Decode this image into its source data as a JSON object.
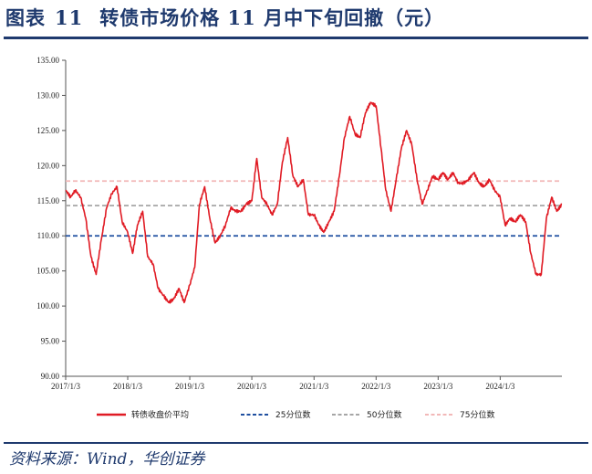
{
  "header": {
    "figure_label": "图表",
    "figure_number": "11",
    "title": "转债市场价格 11 月中下旬回撤（元）"
  },
  "source": "资料来源：Wind，华创证券",
  "colors": {
    "price": "#e01b24",
    "p25": "#1f4fa0",
    "p50": "#a6a6a6",
    "p75": "#f2b8b8",
    "title": "#1f3a6e"
  },
  "chart_data": {
    "type": "line",
    "title": "",
    "xlabel": "",
    "ylabel": "",
    "ylim": [
      90,
      135
    ],
    "yticks": [
      "90.00",
      "95.00",
      "100.00",
      "105.00",
      "110.00",
      "115.00",
      "120.00",
      "125.00",
      "130.00",
      "135.00"
    ],
    "x_range": [
      "2017-01-03",
      "2024-12-31"
    ],
    "xticks": [
      "2017/1/3",
      "2018/1/3",
      "2019/1/3",
      "2020/1/3",
      "2021/1/3",
      "2022/1/3",
      "2023/1/3",
      "2024/1/3"
    ],
    "legend": {
      "placement": "bottom"
    },
    "series": [
      {
        "name": "转债收盘价平均",
        "style": "solid",
        "points": [
          [
            "2017-01-03",
            116.5
          ],
          [
            "2017-02-01",
            115.5
          ],
          [
            "2017-03-01",
            116.5
          ],
          [
            "2017-04-01",
            115.5
          ],
          [
            "2017-05-01",
            112.5
          ],
          [
            "2017-06-01",
            107.0
          ],
          [
            "2017-07-01",
            104.5
          ],
          [
            "2017-08-01",
            109.5
          ],
          [
            "2017-09-01",
            114.0
          ],
          [
            "2017-10-01",
            116.0
          ],
          [
            "2017-11-01",
            117.0
          ],
          [
            "2017-12-01",
            112.0
          ],
          [
            "2018-01-03",
            110.5
          ],
          [
            "2018-02-01",
            107.5
          ],
          [
            "2018-03-01",
            111.5
          ],
          [
            "2018-04-01",
            113.5
          ],
          [
            "2018-05-01",
            107.0
          ],
          [
            "2018-06-01",
            106.0
          ],
          [
            "2018-07-01",
            102.5
          ],
          [
            "2018-08-01",
            101.5
          ],
          [
            "2018-09-01",
            100.5
          ],
          [
            "2018-10-01",
            101.0
          ],
          [
            "2018-11-01",
            102.5
          ],
          [
            "2018-12-01",
            100.5
          ],
          [
            "2019-01-03",
            103.0
          ],
          [
            "2019-02-01",
            105.5
          ],
          [
            "2019-03-01",
            114.5
          ],
          [
            "2019-04-01",
            117.0
          ],
          [
            "2019-05-01",
            112.5
          ],
          [
            "2019-06-01",
            109.0
          ],
          [
            "2019-07-01",
            110.0
          ],
          [
            "2019-08-01",
            111.5
          ],
          [
            "2019-09-01",
            114.0
          ],
          [
            "2019-10-01",
            113.5
          ],
          [
            "2019-11-01",
            113.5
          ],
          [
            "2019-12-01",
            114.5
          ],
          [
            "2020-01-03",
            115.0
          ],
          [
            "2020-02-01",
            121.0
          ],
          [
            "2020-03-01",
            115.5
          ],
          [
            "2020-04-01",
            114.5
          ],
          [
            "2020-05-01",
            113.0
          ],
          [
            "2020-06-01",
            114.5
          ],
          [
            "2020-07-01",
            120.5
          ],
          [
            "2020-08-01",
            124.0
          ],
          [
            "2020-09-01",
            118.5
          ],
          [
            "2020-10-01",
            117.0
          ],
          [
            "2020-11-01",
            118.0
          ],
          [
            "2020-12-01",
            113.0
          ],
          [
            "2021-01-03",
            113.0
          ],
          [
            "2021-02-01",
            111.5
          ],
          [
            "2021-03-01",
            110.5
          ],
          [
            "2021-04-01",
            112.0
          ],
          [
            "2021-05-01",
            113.5
          ],
          [
            "2021-06-01",
            118.5
          ],
          [
            "2021-07-01",
            124.0
          ],
          [
            "2021-08-01",
            127.0
          ],
          [
            "2021-09-01",
            124.5
          ],
          [
            "2021-10-01",
            124.0
          ],
          [
            "2021-11-01",
            127.5
          ],
          [
            "2021-12-01",
            129.0
          ],
          [
            "2022-01-03",
            128.5
          ],
          [
            "2022-02-01",
            122.5
          ],
          [
            "2022-03-01",
            116.5
          ],
          [
            "2022-04-01",
            113.5
          ],
          [
            "2022-05-01",
            118.0
          ],
          [
            "2022-06-01",
            122.5
          ],
          [
            "2022-07-01",
            125.0
          ],
          [
            "2022-08-01",
            123.0
          ],
          [
            "2022-09-01",
            118.0
          ],
          [
            "2022-10-01",
            114.5
          ],
          [
            "2022-11-01",
            116.5
          ],
          [
            "2022-12-01",
            118.5
          ],
          [
            "2023-01-03",
            118.0
          ],
          [
            "2023-02-01",
            119.0
          ],
          [
            "2023-03-01",
            118.0
          ],
          [
            "2023-04-01",
            119.0
          ],
          [
            "2023-05-01",
            117.5
          ],
          [
            "2023-06-01",
            117.5
          ],
          [
            "2023-07-01",
            118.0
          ],
          [
            "2023-08-01",
            119.0
          ],
          [
            "2023-09-01",
            117.5
          ],
          [
            "2023-10-01",
            117.0
          ],
          [
            "2023-11-01",
            118.0
          ],
          [
            "2023-12-01",
            116.5
          ],
          [
            "2024-01-03",
            115.5
          ],
          [
            "2024-02-01",
            111.5
          ],
          [
            "2024-03-01",
            112.5
          ],
          [
            "2024-04-01",
            112.0
          ],
          [
            "2024-05-01",
            113.0
          ],
          [
            "2024-06-01",
            112.0
          ],
          [
            "2024-07-01",
            107.5
          ],
          [
            "2024-08-01",
            104.5
          ],
          [
            "2024-09-01",
            104.5
          ],
          [
            "2024-10-01",
            112.5
          ],
          [
            "2024-11-01",
            115.5
          ],
          [
            "2024-12-01",
            113.5
          ],
          [
            "2024-12-31",
            114.5
          ]
        ]
      },
      {
        "name": "25分位数",
        "style": "dashed",
        "value": 110.0
      },
      {
        "name": "50分位数",
        "style": "dashed",
        "value": 114.3
      },
      {
        "name": "75分位数",
        "style": "dashed",
        "value": 117.8
      }
    ]
  }
}
